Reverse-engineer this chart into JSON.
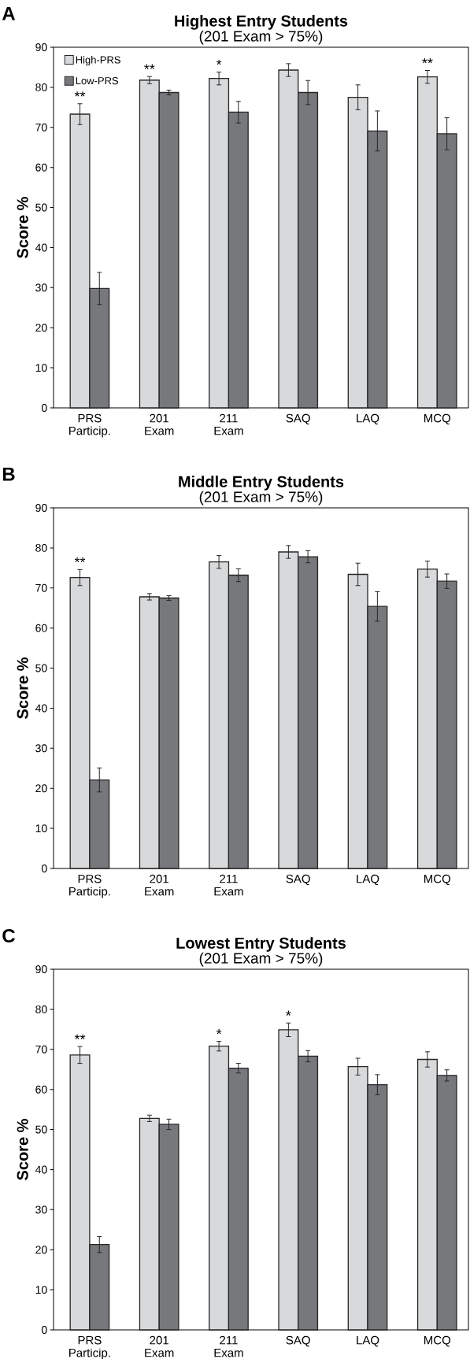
{
  "chart_data": [
    {
      "type": "bar",
      "title": "Highest Entry Students",
      "subtitle": "(201 Exam > 75%)",
      "ylabel": "Score %",
      "categories": [
        "PRS Particip.",
        "201 Exam",
        "211 Exam",
        "SAQ",
        "LAQ",
        "MCQ"
      ],
      "ylim": [
        0,
        90
      ],
      "yticks": [
        0,
        10,
        20,
        30,
        40,
        50,
        60,
        70,
        80,
        90
      ],
      "legend": "top left",
      "series": [
        {
          "name": "High-PRS",
          "color": "#d8d9db",
          "values": [
            73.3,
            81.8,
            82.2,
            84.3,
            77.5,
            82.6
          ],
          "errors": [
            2.6,
            0.9,
            1.6,
            1.6,
            3.1,
            1.6
          ]
        },
        {
          "name": "Low-PRS",
          "color": "#77787c",
          "values": [
            29.8,
            78.7,
            73.8,
            78.7,
            69.1,
            68.4
          ],
          "errors": [
            4.0,
            0.6,
            2.7,
            3.0,
            5.0,
            4.0
          ]
        }
      ],
      "annotations": [
        "A",
        {
          "text": "**",
          "x": "PRS Particip.",
          "y": 73.3
        },
        {
          "text": "**",
          "x": "201 Exam",
          "y": 81.8
        },
        {
          "text": "*",
          "x": "211 Exam",
          "y": 82.2
        },
        {
          "text": "**",
          "x": "MCQ",
          "y": 82.6
        }
      ]
    },
    {
      "type": "bar",
      "title": "Middle Entry Students",
      "subtitle": "(201 Exam > 75%)",
      "ylabel": "Score %",
      "categories": [
        "PRS Particip.",
        "201 Exam",
        "211 Exam",
        "SAQ",
        "LAQ",
        "MCQ"
      ],
      "ylim": [
        0,
        90
      ],
      "yticks": [
        0,
        10,
        20,
        30,
        40,
        50,
        60,
        70,
        80,
        90
      ],
      "series": [
        {
          "color": "#d8d9db",
          "values": [
            72.6,
            67.8,
            76.5,
            79.0,
            73.4,
            74.7
          ],
          "errors": [
            2.0,
            0.8,
            1.6,
            1.6,
            2.8,
            2.0
          ]
        },
        {
          "color": "#77787c",
          "values": [
            22.1,
            67.5,
            73.2,
            77.8,
            65.4,
            71.7
          ],
          "errors": [
            3.0,
            0.6,
            1.6,
            1.5,
            3.7,
            1.8
          ]
        }
      ],
      "annotations": [
        "B",
        {
          "text": "**",
          "x": "PRS Particip.",
          "y": 72.6
        }
      ]
    },
    {
      "type": "bar",
      "title": "Lowest Entry Students",
      "subtitle": "(201 Exam > 75%)",
      "ylabel": "Score %",
      "categories": [
        "PRS Particip.",
        "201 Exam",
        "211 Exam",
        "SAQ",
        "LAQ",
        "MCQ"
      ],
      "ylim": [
        0,
        90
      ],
      "yticks": [
        0,
        10,
        20,
        30,
        40,
        50,
        60,
        70,
        80,
        90
      ],
      "series": [
        {
          "color": "#d8d9db",
          "values": [
            68.6,
            52.8,
            70.8,
            74.9,
            65.7,
            67.5
          ],
          "errors": [
            2.1,
            0.8,
            1.2,
            1.7,
            2.1,
            1.9
          ]
        },
        {
          "color": "#77787c",
          "values": [
            21.3,
            51.3,
            65.3,
            68.3,
            61.2,
            63.5
          ],
          "errors": [
            2.0,
            1.3,
            1.2,
            1.4,
            2.5,
            1.4
          ]
        }
      ],
      "annotations": [
        "C",
        {
          "text": "**",
          "x": "PRS Particip.",
          "y": 68.6
        },
        {
          "text": "*",
          "x": "211 Exam",
          "y": 70.8
        },
        {
          "text": "*",
          "x": "SAQ",
          "y": 74.9
        }
      ]
    }
  ]
}
